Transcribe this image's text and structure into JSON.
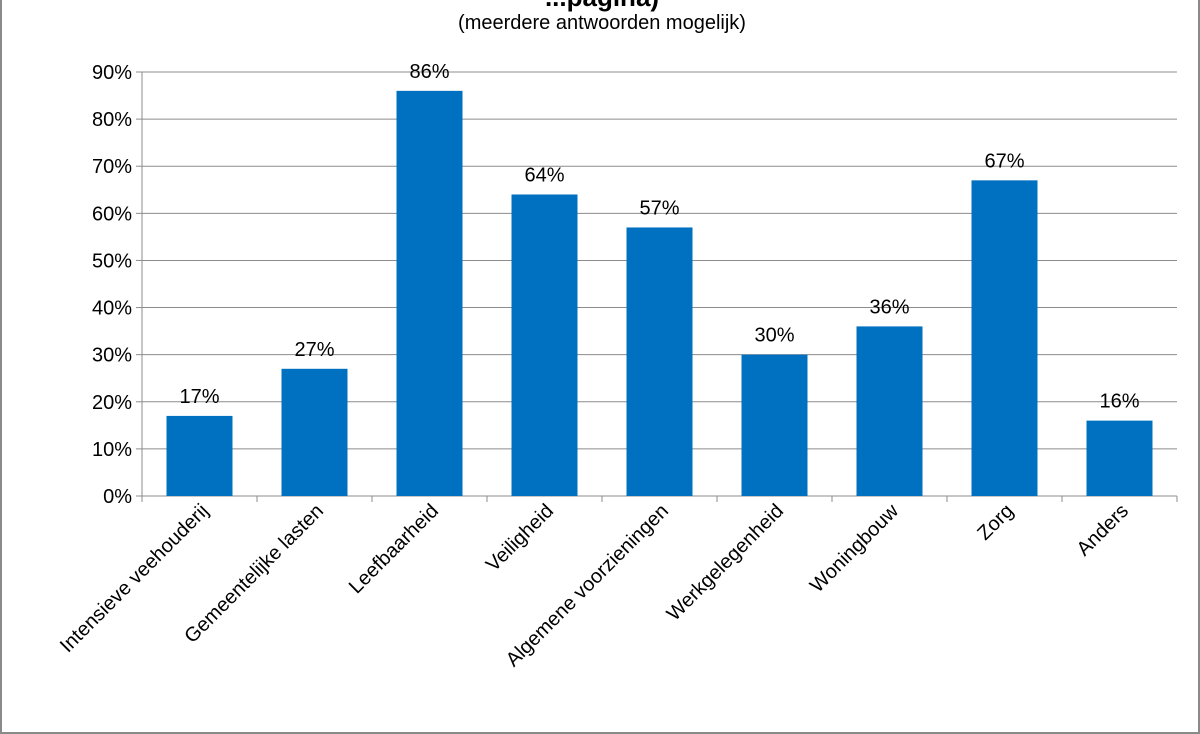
{
  "chart_data": {
    "type": "bar",
    "title": "...pagina)",
    "subtitle": "(meerdere antwoorden mogelijk)",
    "categories": [
      "Intensieve veehouderij",
      "Gemeentelijke lasten",
      "Leefbaarheid",
      "Veiligheid",
      "Algemene voorzieningen",
      "Werkgelegenheid",
      "Woningbouw",
      "Zorg",
      "Anders"
    ],
    "values": [
      17,
      27,
      86,
      64,
      57,
      30,
      36,
      67,
      16
    ],
    "data_labels": [
      "17%",
      "27%",
      "86%",
      "64%",
      "57%",
      "30%",
      "36%",
      "67%",
      "16%"
    ],
    "ylim": [
      0,
      90
    ],
    "yticks": [
      0,
      10,
      20,
      30,
      40,
      50,
      60,
      70,
      80,
      90
    ],
    "ytick_labels": [
      "0%",
      "10%",
      "20%",
      "30%",
      "40%",
      "50%",
      "60%",
      "70%",
      "80%",
      "90%"
    ],
    "grid": true,
    "bar_color": "#0070C0"
  }
}
